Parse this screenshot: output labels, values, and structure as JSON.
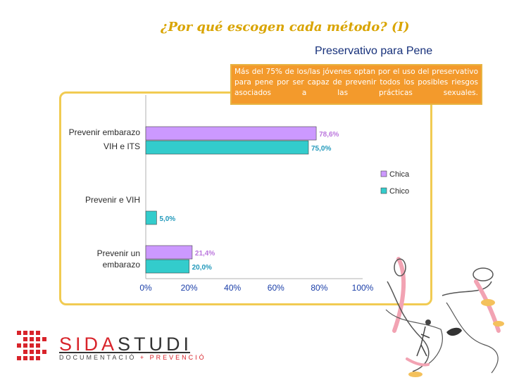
{
  "slide": {
    "title": "¿Por qué escogen cada método? (I)",
    "chart_heading": "Preservativo para Pene",
    "note": "Más del 75% de los/las jóvenes optan por el uso del preservativo para pene por ser capaz de prevenir todos los posibles riesgos asociados a las prácticas sexuales."
  },
  "chart_data": {
    "type": "bar",
    "orientation": "horizontal",
    "categories": [
      "Prevenir embarazo VIH e ITS",
      "Prevenir e VIH",
      "Prevenir un embarazo"
    ],
    "category_lines": [
      [
        "Prevenir  embarazo",
        "VIH e ITS"
      ],
      [
        "Prevenir e  VIH"
      ],
      [
        "Prevenir un",
        "embarazo"
      ]
    ],
    "series": [
      {
        "name": "Chica",
        "values": [
          78.6,
          null,
          21.4
        ],
        "labels": [
          "78,6%",
          "",
          "21,4%"
        ],
        "color": "#cc99ff"
      },
      {
        "name": "Chico",
        "values": [
          75.0,
          5.0,
          20.0
        ],
        "labels": [
          "75,0%",
          "5,0%",
          "20,0%"
        ],
        "color": "#33cccc"
      }
    ],
    "x_ticks": [
      "0%",
      "20%",
      "40%",
      "60%",
      "80%",
      "100%"
    ],
    "xlim": [
      0,
      100
    ],
    "grid": false,
    "legend_position": "right"
  },
  "logo": {
    "name_part1": "SIDA",
    "name_part2": "STUDI",
    "sub_part1": "DOCUMENTACIÓ",
    "sub_part2": " + PREVENCIÓ"
  },
  "colors": {
    "title": "#d9a400",
    "heading": "#16307a",
    "frame": "#f1cb52",
    "note_bg": "#f39a2c",
    "logo_red": "#d8232a"
  }
}
